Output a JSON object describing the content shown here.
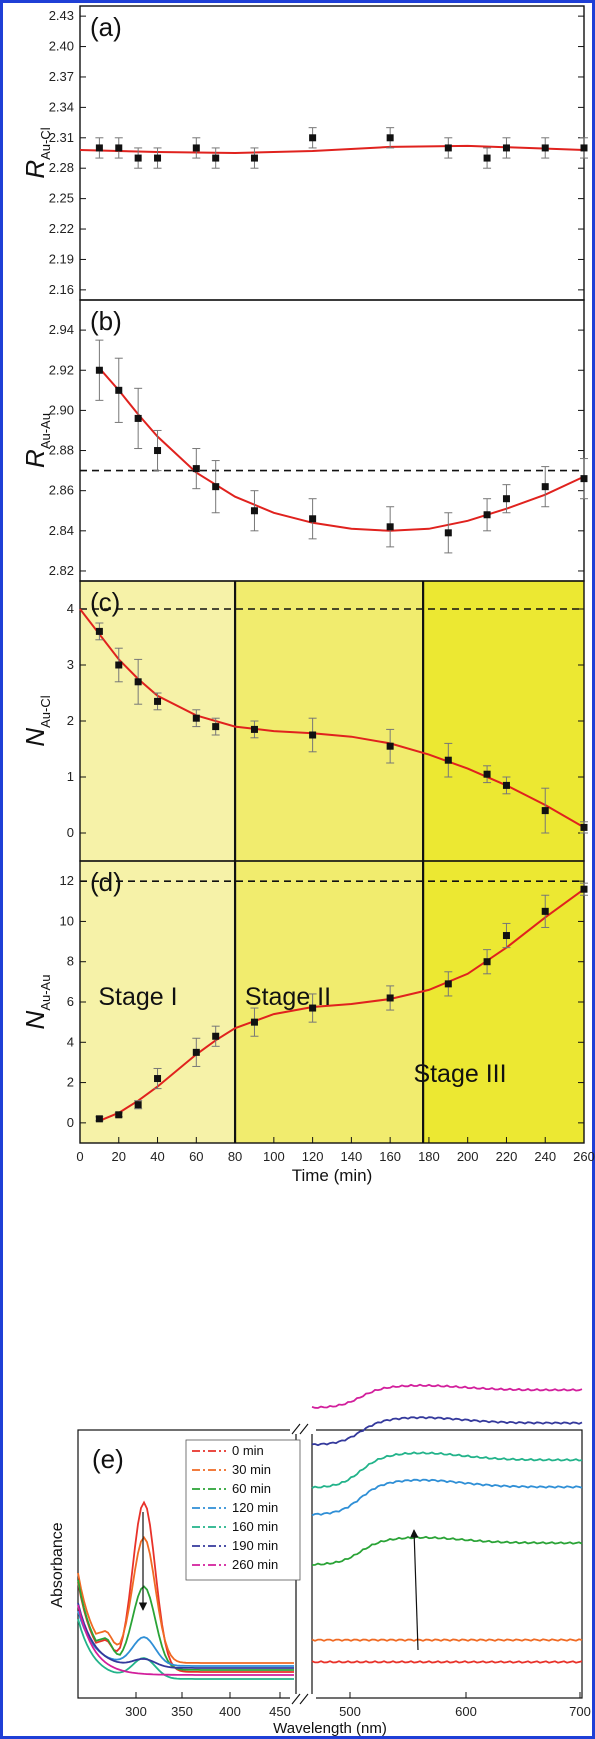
{
  "chart_data": [
    {
      "type": "scatter",
      "panel_label": "(a)",
      "ylabel": "R",
      "ylabel_sub": "Au-Cl",
      "ylim": [
        2.15,
        2.44
      ],
      "yticks": [
        "2.16",
        "2.19",
        "2.22",
        "2.25",
        "2.28",
        "2.31",
        "2.34",
        "2.37",
        "2.40",
        "2.43"
      ],
      "xlim": [
        0,
        260
      ],
      "x": [
        10,
        20,
        30,
        40,
        60,
        70,
        90,
        120,
        160,
        190,
        210,
        220,
        240,
        260
      ],
      "y": [
        2.3,
        2.3,
        2.29,
        2.29,
        2.3,
        2.29,
        2.29,
        2.31,
        2.31,
        2.3,
        2.29,
        2.3,
        2.3,
        2.3
      ],
      "err": [
        0.01,
        0.01,
        0.01,
        0.01,
        0.01,
        0.01,
        0.01,
        0.01,
        0.01,
        0.01,
        0.01,
        0.01,
        0.01,
        0.01
      ],
      "fit": [
        [
          0,
          2.298
        ],
        [
          40,
          2.296
        ],
        [
          80,
          2.295
        ],
        [
          120,
          2.297
        ],
        [
          160,
          2.301
        ],
        [
          200,
          2.302
        ],
        [
          230,
          2.3
        ],
        [
          260,
          2.298
        ]
      ]
    },
    {
      "type": "scatter",
      "panel_label": "(b)",
      "ylabel": "R",
      "ylabel_sub": "Au-Au",
      "ylim": [
        2.815,
        2.955
      ],
      "yticks": [
        "2.82",
        "2.84",
        "2.86",
        "2.88",
        "2.90",
        "2.92",
        "2.94"
      ],
      "xlim": [
        0,
        260
      ],
      "reference_line": 2.87,
      "x": [
        10,
        20,
        30,
        40,
        60,
        70,
        90,
        120,
        160,
        190,
        210,
        220,
        240,
        260
      ],
      "y": [
        2.92,
        2.91,
        2.896,
        2.88,
        2.871,
        2.862,
        2.85,
        2.846,
        2.842,
        2.839,
        2.848,
        2.856,
        2.862,
        2.866
      ],
      "err": [
        0.015,
        0.016,
        0.015,
        0.01,
        0.01,
        0.013,
        0.01,
        0.01,
        0.01,
        0.01,
        0.008,
        0.007,
        0.01,
        0.01
      ],
      "fit": [
        [
          10,
          2.921
        ],
        [
          20,
          2.91
        ],
        [
          30,
          2.898
        ],
        [
          40,
          2.887
        ],
        [
          60,
          2.869
        ],
        [
          80,
          2.857
        ],
        [
          100,
          2.849
        ],
        [
          120,
          2.844
        ],
        [
          140,
          2.841
        ],
        [
          160,
          2.84
        ],
        [
          180,
          2.841
        ],
        [
          200,
          2.845
        ],
        [
          220,
          2.851
        ],
        [
          240,
          2.858
        ],
        [
          260,
          2.867
        ]
      ]
    },
    {
      "type": "scatter",
      "panel_label": "(c)",
      "ylabel": "N",
      "ylabel_sub": "Au-Cl",
      "ylim": [
        -0.5,
        4.5
      ],
      "yticks": [
        "0",
        "1",
        "2",
        "3",
        "4"
      ],
      "xlim": [
        0,
        260
      ],
      "reference_line": 4,
      "x": [
        10,
        20,
        30,
        40,
        60,
        70,
        90,
        120,
        160,
        190,
        210,
        220,
        240,
        260
      ],
      "y": [
        3.6,
        3.0,
        2.7,
        2.35,
        2.05,
        1.9,
        1.85,
        1.75,
        1.55,
        1.3,
        1.05,
        0.85,
        0.4,
        0.1
      ],
      "err": [
        0.15,
        0.3,
        0.4,
        0.15,
        0.15,
        0.15,
        0.15,
        0.3,
        0.3,
        0.3,
        0.15,
        0.15,
        0.4,
        0.1
      ],
      "fit": [
        [
          0,
          4.0
        ],
        [
          10,
          3.55
        ],
        [
          20,
          3.1
        ],
        [
          30,
          2.75
        ],
        [
          40,
          2.45
        ],
        [
          60,
          2.1
        ],
        [
          80,
          1.9
        ],
        [
          100,
          1.82
        ],
        [
          120,
          1.78
        ],
        [
          140,
          1.72
        ],
        [
          160,
          1.6
        ],
        [
          180,
          1.4
        ],
        [
          200,
          1.15
        ],
        [
          220,
          0.85
        ],
        [
          240,
          0.5
        ],
        [
          260,
          0.1
        ]
      ]
    },
    {
      "type": "scatter",
      "panel_label": "(d)",
      "ylabel": "N",
      "ylabel_sub": "Au-Au",
      "xlabel": "Time (min)",
      "ylim": [
        -1,
        13
      ],
      "yticks": [
        "0",
        "2",
        "4",
        "6",
        "8",
        "10",
        "12"
      ],
      "xlim": [
        0,
        260
      ],
      "xticks": [
        "0",
        "20",
        "40",
        "60",
        "80",
        "100",
        "120",
        "140",
        "160",
        "180",
        "200",
        "220",
        "240",
        "260"
      ],
      "reference_line": 12,
      "stage_boundaries": [
        80,
        177
      ],
      "stage_labels": [
        "Stage I",
        "Stage II",
        "Stage III"
      ],
      "stage_colors": [
        "#f6f2a8",
        "#f1ec6e",
        "#ece832"
      ],
      "x": [
        10,
        20,
        30,
        40,
        60,
        70,
        90,
        120,
        160,
        190,
        210,
        220,
        240,
        260
      ],
      "y": [
        0.2,
        0.4,
        0.9,
        2.2,
        3.5,
        4.3,
        5.0,
        5.7,
        6.2,
        6.9,
        8.0,
        9.3,
        10.5,
        11.6
      ],
      "err": [
        0.1,
        0.1,
        0.2,
        0.5,
        0.7,
        0.5,
        0.7,
        0.7,
        0.6,
        0.6,
        0.6,
        0.6,
        0.8,
        0.3
      ],
      "fit": [
        [
          10,
          0.1
        ],
        [
          20,
          0.5
        ],
        [
          30,
          1.1
        ],
        [
          40,
          1.8
        ],
        [
          50,
          2.6
        ],
        [
          60,
          3.4
        ],
        [
          70,
          4.1
        ],
        [
          80,
          4.7
        ],
        [
          100,
          5.4
        ],
        [
          120,
          5.75
        ],
        [
          140,
          5.9
        ],
        [
          160,
          6.15
        ],
        [
          180,
          6.6
        ],
        [
          200,
          7.4
        ],
        [
          220,
          8.7
        ],
        [
          240,
          10.2
        ],
        [
          260,
          11.6
        ]
      ]
    },
    {
      "type": "line",
      "panel_label": "(e)",
      "xlabel": "Wavelength (nm)",
      "ylabel": "Absorbance",
      "xticks_left": [
        "300",
        "350",
        "400",
        "450"
      ],
      "xticks_right": [
        "500",
        "600",
        "700"
      ],
      "series": [
        {
          "name": "0 min",
          "color": "#e8322a"
        },
        {
          "name": "30 min",
          "color": "#f06a23"
        },
        {
          "name": "60 min",
          "color": "#2aa336"
        },
        {
          "name": "120 min",
          "color": "#2f8fd6"
        },
        {
          "name": "160 min",
          "color": "#22b38a"
        },
        {
          "name": "190 min",
          "color": "#34399c"
        },
        {
          "name": "260 min",
          "color": "#d21f9c"
        }
      ]
    }
  ]
}
